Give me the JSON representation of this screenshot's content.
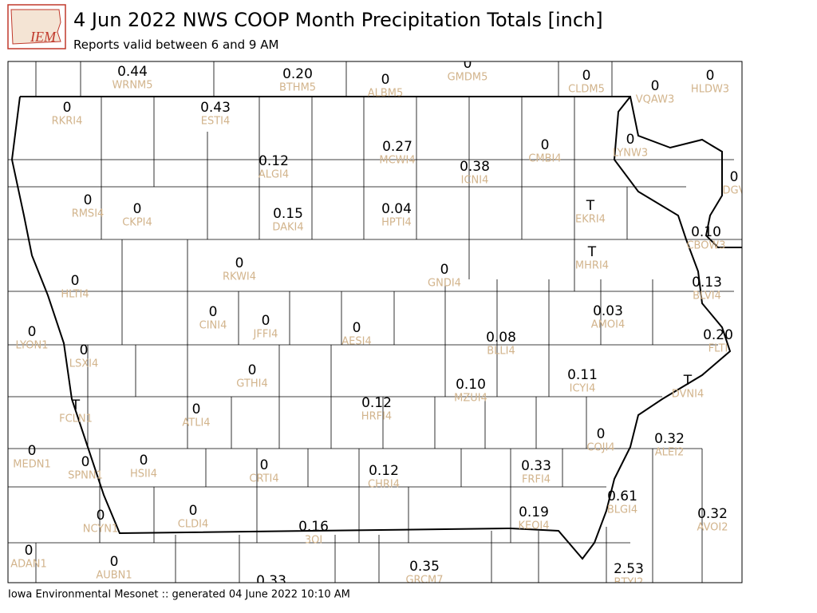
{
  "header": {
    "logo": "IEM",
    "title": "4 Jun 2022 NWS COOP Month Precipitation Totals [inch]",
    "subtitle": "Reports valid between 6 and 9 AM"
  },
  "footer": "Iowa Environmental Mesonet :: generated 04 June 2022 10:10 AM",
  "stations": [
    {
      "value": "0.44",
      "id": "WRNM5"
    },
    {
      "value": "0.20",
      "id": "BTHM5"
    },
    {
      "value": "0",
      "id": "GMDM5"
    },
    {
      "value": "0",
      "id": "ALBM5"
    },
    {
      "value": "0",
      "id": "CLDM5"
    },
    {
      "value": "0",
      "id": "VQAW3"
    },
    {
      "value": "0",
      "id": "HLDW3"
    },
    {
      "value": "0",
      "id": "RKRI4"
    },
    {
      "value": "0.43",
      "id": "ESTI4"
    },
    {
      "value": "0.12",
      "id": "ALGI4"
    },
    {
      "value": "0.27",
      "id": "MCWI4"
    },
    {
      "value": "0.38",
      "id": "ICNI4"
    },
    {
      "value": "0",
      "id": "CMBI4"
    },
    {
      "value": "0",
      "id": "LYNW3"
    },
    {
      "value": "0",
      "id": "DGV"
    },
    {
      "value": "0",
      "id": "RMSI4"
    },
    {
      "value": "0",
      "id": "CKPI4"
    },
    {
      "value": "0.15",
      "id": "DAKI4"
    },
    {
      "value": "0.04",
      "id": "HPTI4"
    },
    {
      "value": "T",
      "id": "EKRI4"
    },
    {
      "value": "0.10",
      "id": "CBOW3"
    },
    {
      "value": "0",
      "id": "RKWI4"
    },
    {
      "value": "0",
      "id": "GNDI4"
    },
    {
      "value": "T",
      "id": "MHRI4"
    },
    {
      "value": "0",
      "id": "HLTI4"
    },
    {
      "value": "0.13",
      "id": "BLVI4"
    },
    {
      "value": "0",
      "id": "CINI4"
    },
    {
      "value": "0",
      "id": "JFFI4"
    },
    {
      "value": "0",
      "id": "AESI4"
    },
    {
      "value": "0.03",
      "id": "AMOI4"
    },
    {
      "value": "0",
      "id": "LYON1"
    },
    {
      "value": "0",
      "id": "LSXI4"
    },
    {
      "value": "0.08",
      "id": "BLLI4"
    },
    {
      "value": "0.20",
      "id": "FLTI"
    },
    {
      "value": "0",
      "id": "GTHI4"
    },
    {
      "value": "0.11",
      "id": "ICYI4"
    },
    {
      "value": "T",
      "id": "DVNI4"
    },
    {
      "value": "0.10",
      "id": "MZUI4"
    },
    {
      "value": "T",
      "id": "FCLN1"
    },
    {
      "value": "0.12",
      "id": "HRFI4"
    },
    {
      "value": "0",
      "id": "ATLI4"
    },
    {
      "value": "0",
      "id": "COJI4"
    },
    {
      "value": "0.32",
      "id": "ALEI2"
    },
    {
      "value": "0",
      "id": "MEDN1"
    },
    {
      "value": "0",
      "id": "SPNN1"
    },
    {
      "value": "0",
      "id": "HSII4"
    },
    {
      "value": "0",
      "id": "CRTI4"
    },
    {
      "value": "0.12",
      "id": "CHRI4"
    },
    {
      "value": "0.33",
      "id": "FRFI4"
    },
    {
      "value": "0.61",
      "id": "BLGI4"
    },
    {
      "value": "0",
      "id": "CLDI4"
    },
    {
      "value": "0.19",
      "id": "KEOI4"
    },
    {
      "value": "0.32",
      "id": "AVOI2"
    },
    {
      "value": "0",
      "id": "NCYN1"
    },
    {
      "value": "0.16",
      "id": "3OI"
    },
    {
      "value": "0",
      "id": "ADAN1"
    },
    {
      "value": "0",
      "id": "AUBN1"
    },
    {
      "value": "0.35",
      "id": "GRCM7"
    },
    {
      "value": "2.53",
      "id": "BTYI2"
    },
    {
      "value": "0.33"
    }
  ]
}
